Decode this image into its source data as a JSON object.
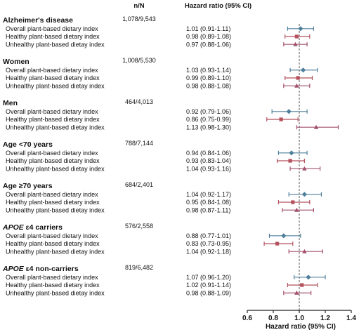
{
  "chart_data": {
    "type": "forest",
    "header_nn": "n/N",
    "header_hr": "Hazard ratio (95% CI)",
    "xlabel": "Hazard ratio (95% CI)",
    "xlim": [
      0.6,
      1.4
    ],
    "ticks": [
      0.6,
      0.8,
      1.0,
      1.2,
      1.4
    ],
    "tick_labels": [
      "0.6",
      "0.8",
      "1.0",
      "1.2",
      "1.4"
    ],
    "reference_line": 1.0,
    "colors": {
      "overall": "#4f7f9a",
      "healthy": "#b5515d",
      "unhealthy": "#a3506e",
      "reference": "#555555",
      "axis": "#222222"
    },
    "markers": {
      "overall": "diamond",
      "healthy": "square",
      "unhealthy": "triangle"
    },
    "groups": [
      {
        "title_prefix": "",
        "title_main": "Alzheimer's disease",
        "nn": "1,078/9,543",
        "rows": [
          {
            "label": "Overall plant-based dietary index",
            "type": "overall",
            "hr": 1.01,
            "lo": 0.91,
            "hi": 1.11,
            "text": "1.01 (0.91-1.11)"
          },
          {
            "label": "Healthy plant-based dietary index",
            "type": "healthy",
            "hr": 0.98,
            "lo": 0.89,
            "hi": 1.08,
            "text": "0.98 (0.89-1.08)"
          },
          {
            "label": "Unhealthy plant-based dietay index",
            "type": "unhealthy",
            "hr": 0.97,
            "lo": 0.88,
            "hi": 1.06,
            "text": "0.97 (0.88-1.06)"
          }
        ]
      },
      {
        "title_prefix": "",
        "title_main": "Women",
        "nn": "1,008/5,530",
        "rows": [
          {
            "label": "Overall plant-based dietary index",
            "type": "overall",
            "hr": 1.03,
            "lo": 0.93,
            "hi": 1.14,
            "text": "1.03 (0.93-1.14)"
          },
          {
            "label": "Healthy plant-based dietary index",
            "type": "healthy",
            "hr": 0.99,
            "lo": 0.89,
            "hi": 1.1,
            "text": "0.99 (0.89-1.10)"
          },
          {
            "label": "Unhealthy plant-based dietay index",
            "type": "unhealthy",
            "hr": 0.98,
            "lo": 0.88,
            "hi": 1.08,
            "text": "0.98 (0.88-1.08)"
          }
        ]
      },
      {
        "title_prefix": "",
        "title_main": "Men",
        "nn": "464/4,013",
        "rows": [
          {
            "label": "Overall plant-based dietary index",
            "type": "overall",
            "hr": 0.92,
            "lo": 0.79,
            "hi": 1.06,
            "text": "0.92 (0.79-1.06)"
          },
          {
            "label": "Healthy plant-based dietary index",
            "type": "healthy",
            "hr": 0.86,
            "lo": 0.75,
            "hi": 0.99,
            "text": "0.86 (0.75-0.99)"
          },
          {
            "label": "Unhealthy plant-based dietay index",
            "type": "unhealthy",
            "hr": 1.13,
            "lo": 0.98,
            "hi": 1.3,
            "text": "1.13 (0.98-1.30)"
          }
        ]
      },
      {
        "title_prefix": "",
        "title_main": "Age <70 years",
        "nn": "788/7,144",
        "rows": [
          {
            "label": "Overall plant-based dietary index",
            "type": "overall",
            "hr": 0.94,
            "lo": 0.84,
            "hi": 1.06,
            "text": "0.94 (0.84-1.06)"
          },
          {
            "label": "Healthy plant-based dietary index",
            "type": "healthy",
            "hr": 0.93,
            "lo": 0.83,
            "hi": 1.04,
            "text": "0.93 (0.83-1.04)"
          },
          {
            "label": "Unhealthy plant-based dietay index",
            "type": "unhealthy",
            "hr": 1.04,
            "lo": 0.93,
            "hi": 1.16,
            "text": "1.04 (0.93-1.16)"
          }
        ]
      },
      {
        "title_prefix": "",
        "title_main": "Age ≥70 years",
        "nn": "684/2,401",
        "rows": [
          {
            "label": "Overall plant-based dietary index",
            "type": "overall",
            "hr": 1.04,
            "lo": 0.92,
            "hi": 1.17,
            "text": "1.04 (0.92-1.17)"
          },
          {
            "label": "Healthy plant-based dietary index",
            "type": "healthy",
            "hr": 0.95,
            "lo": 0.84,
            "hi": 1.08,
            "text": "0.95 (0.84-1.08)"
          },
          {
            "label": "Unhealthy plant-based dietay index",
            "type": "unhealthy",
            "hr": 0.98,
            "lo": 0.87,
            "hi": 1.11,
            "text": "0.98 (0.87-1.11)"
          }
        ]
      },
      {
        "title_prefix": "APOE",
        "title_main": " ε4 carriers",
        "nn": "576/2,558",
        "rows": [
          {
            "label": "Overall plant-based dietary index",
            "type": "overall",
            "hr": 0.88,
            "lo": 0.77,
            "hi": 1.01,
            "text": "0.88 (0.77-1.01)"
          },
          {
            "label": "Healthy plant-based dietary index",
            "type": "healthy",
            "hr": 0.83,
            "lo": 0.73,
            "hi": 0.95,
            "text": "0.83 (0.73-0.95)"
          },
          {
            "label": "Unhealthy plant-based dietay index",
            "type": "unhealthy",
            "hr": 1.04,
            "lo": 0.92,
            "hi": 1.18,
            "text": "1.04 (0.92-1.18)"
          }
        ]
      },
      {
        "title_prefix": "APOE",
        "title_main": " ε4 non-carriers",
        "nn": "819/6,482",
        "rows": [
          {
            "label": "Overall plant-based dietary index",
            "type": "overall",
            "hr": 1.07,
            "lo": 0.96,
            "hi": 1.2,
            "text": "1.07 (0.96-1.20)"
          },
          {
            "label": "Healthy plant-based dietary index",
            "type": "healthy",
            "hr": 1.02,
            "lo": 0.91,
            "hi": 1.14,
            "text": "1.02 (0.91-1.14)"
          },
          {
            "label": "Unhealthy plant-based dietay index",
            "type": "unhealthy",
            "hr": 0.98,
            "lo": 0.88,
            "hi": 1.09,
            "text": "0.98 (0.88-1.09)"
          }
        ]
      }
    ]
  }
}
